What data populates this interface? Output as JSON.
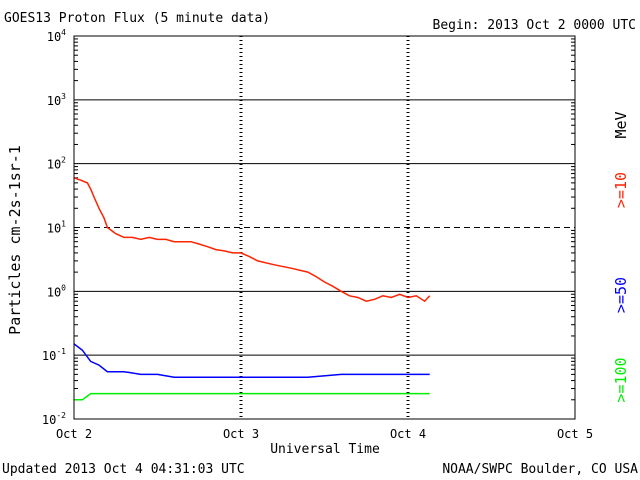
{
  "header": {
    "title": "GOES13 Proton Flux (5 minute data)",
    "begin": "Begin: 2013 Oct 2 0000 UTC"
  },
  "footer": {
    "updated": "Updated 2013 Oct  4 04:31:03 UTC",
    "credit": "NOAA/SWPC Boulder, CO USA"
  },
  "colors": {
    "ge10": "#ff2200",
    "ge50": "#0000ff",
    "ge100": "#00ee00",
    "grid": "#000000"
  },
  "chart_data": {
    "type": "line",
    "title": "GOES13 Proton Flux (5 minute data)",
    "xlabel": "Universal Time",
    "ylabel": "Particles cm-2s-1sr-1",
    "yscale": "log",
    "ylim": [
      0.01,
      10000
    ],
    "xlim": [
      0,
      3
    ],
    "x_units": "days since 2013 Oct 2 0000 UTC",
    "x_ticks": [
      {
        "value": 0,
        "label": "Oct 2"
      },
      {
        "value": 1,
        "label": "Oct 3"
      },
      {
        "value": 2,
        "label": "Oct 4"
      },
      {
        "value": 3,
        "label": "Oct 5"
      }
    ],
    "y_ticks": [
      {
        "value": 0.01,
        "base": "10",
        "exp": "-2"
      },
      {
        "value": 0.1,
        "base": "10",
        "exp": "-1"
      },
      {
        "value": 1,
        "base": "10",
        "exp": "0"
      },
      {
        "value": 10,
        "base": "10",
        "exp": "1"
      },
      {
        "value": 100,
        "base": "10",
        "exp": "2"
      },
      {
        "value": 1000,
        "base": "10",
        "exp": "3"
      },
      {
        "value": 10000,
        "base": "10",
        "exp": "4"
      }
    ],
    "threshold": {
      "value": 10,
      "style": "dashed"
    },
    "legend_unit": "MeV",
    "series": [
      {
        "name": ">=10",
        "color": "#ff2200",
        "x": [
          0,
          0.04,
          0.08,
          0.1,
          0.12,
          0.15,
          0.18,
          0.2,
          0.25,
          0.3,
          0.35,
          0.4,
          0.45,
          0.5,
          0.55,
          0.6,
          0.65,
          0.7,
          0.75,
          0.8,
          0.85,
          0.9,
          0.95,
          1.0,
          1.05,
          1.1,
          1.2,
          1.3,
          1.4,
          1.45,
          1.5,
          1.55,
          1.6,
          1.65,
          1.7,
          1.75,
          1.8,
          1.85,
          1.9,
          1.95,
          2.0,
          2.05,
          2.1,
          2.13
        ],
        "y": [
          60,
          55,
          50,
          40,
          30,
          20,
          14,
          10,
          8,
          7,
          7,
          6.5,
          7,
          6.5,
          6.5,
          6,
          6,
          6,
          5.5,
          5,
          4.5,
          4.3,
          4,
          4,
          3.5,
          3,
          2.6,
          2.3,
          2.0,
          1.7,
          1.4,
          1.2,
          1.0,
          0.85,
          0.8,
          0.7,
          0.75,
          0.85,
          0.8,
          0.9,
          0.8,
          0.85,
          0.7,
          0.85
        ]
      },
      {
        "name": ">=50",
        "color": "#0000ff",
        "x": [
          0,
          0.05,
          0.1,
          0.15,
          0.2,
          0.3,
          0.4,
          0.5,
          0.6,
          0.7,
          0.8,
          0.9,
          1.0,
          1.2,
          1.4,
          1.6,
          1.8,
          2.0,
          2.13
        ],
        "y": [
          0.15,
          0.12,
          0.08,
          0.07,
          0.055,
          0.055,
          0.05,
          0.05,
          0.045,
          0.045,
          0.045,
          0.045,
          0.045,
          0.045,
          0.045,
          0.05,
          0.05,
          0.05,
          0.05
        ]
      },
      {
        "name": ">=100",
        "color": "#00ee00",
        "x": [
          0,
          0.05,
          0.1,
          0.2,
          0.4,
          0.6,
          0.8,
          1.0,
          1.2,
          1.4,
          1.6,
          1.8,
          2.0,
          2.13
        ],
        "y": [
          0.02,
          0.02,
          0.025,
          0.025,
          0.025,
          0.025,
          0.025,
          0.025,
          0.025,
          0.025,
          0.025,
          0.025,
          0.025,
          0.025
        ]
      }
    ]
  }
}
